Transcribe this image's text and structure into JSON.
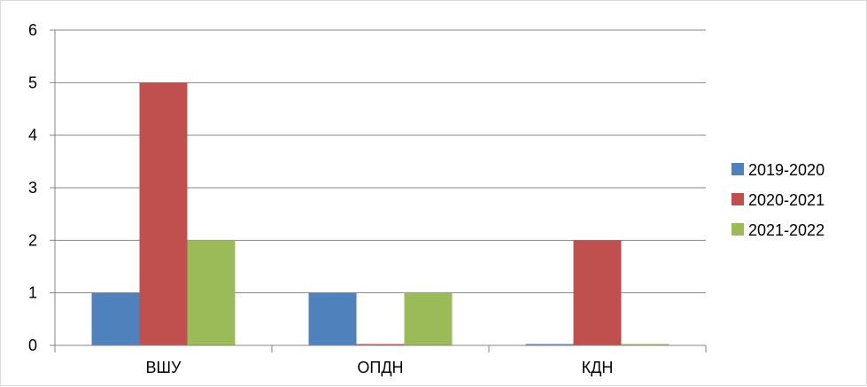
{
  "chart_data": {
    "type": "bar",
    "title": "",
    "xlabel": "",
    "ylabel": "",
    "categories": [
      "ВШУ",
      "ОПДН",
      "КДН"
    ],
    "ylim": [
      0,
      6
    ],
    "yticks": [
      0,
      1,
      2,
      3,
      4,
      5,
      6
    ],
    "grid": true,
    "legend_position": "right",
    "series": [
      {
        "name": "2019-2020",
        "color": "#4f81bd",
        "values": [
          1,
          1,
          0
        ]
      },
      {
        "name": "2020-2021",
        "color": "#c0504d",
        "values": [
          5,
          0,
          2
        ]
      },
      {
        "name": "2021-2022",
        "color": "#9bbb59",
        "values": [
          2,
          1,
          0
        ]
      }
    ]
  }
}
